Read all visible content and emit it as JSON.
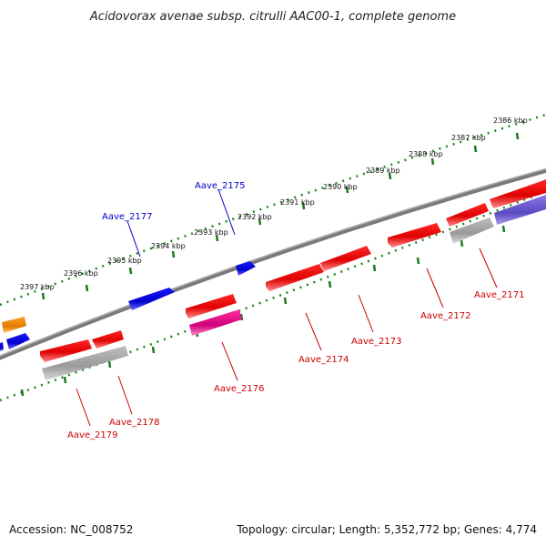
{
  "title": "Acidovorax avenae subsp. citrulli AAC00-1, complete genome",
  "footer": {
    "accession": "Accession: NC_008752",
    "summary": "Topology: circular; Length: 5,352,772 bp; Genes: 4,774"
  },
  "colors": {
    "backbone": "#808080",
    "ruler_dots": "#1a8a1a",
    "ruler_ticks": "#1a7a1a",
    "red": "#e00000",
    "blue": "#0000dd",
    "gray": "#a8a8a8",
    "orange": "#f08800",
    "magenta": "#e0108a",
    "slate": "#6a5acd",
    "label_blue": "#0000cc",
    "label_red": "#cc0000"
  },
  "kbp_labels": [
    "2386 kbp",
    "2387 kbp",
    "2388 kbp",
    "2389 kbp",
    "2390 kbp",
    "2391 kbp",
    "2392 kbp",
    "2393 kbp",
    "2394 kbp",
    "2395 kbp",
    "2396 kbp",
    "2397 kbp"
  ],
  "gene_labels": {
    "aave_2175": "Aave_2175",
    "aave_2177": "Aave_2177",
    "aave_2171": "Aave_2171",
    "aave_2172": "Aave_2172",
    "aave_2173": "Aave_2173",
    "aave_2174": "Aave_2174",
    "aave_2176": "Aave_2176",
    "aave_2178": "Aave_2178",
    "aave_2179": "Aave_2179"
  }
}
